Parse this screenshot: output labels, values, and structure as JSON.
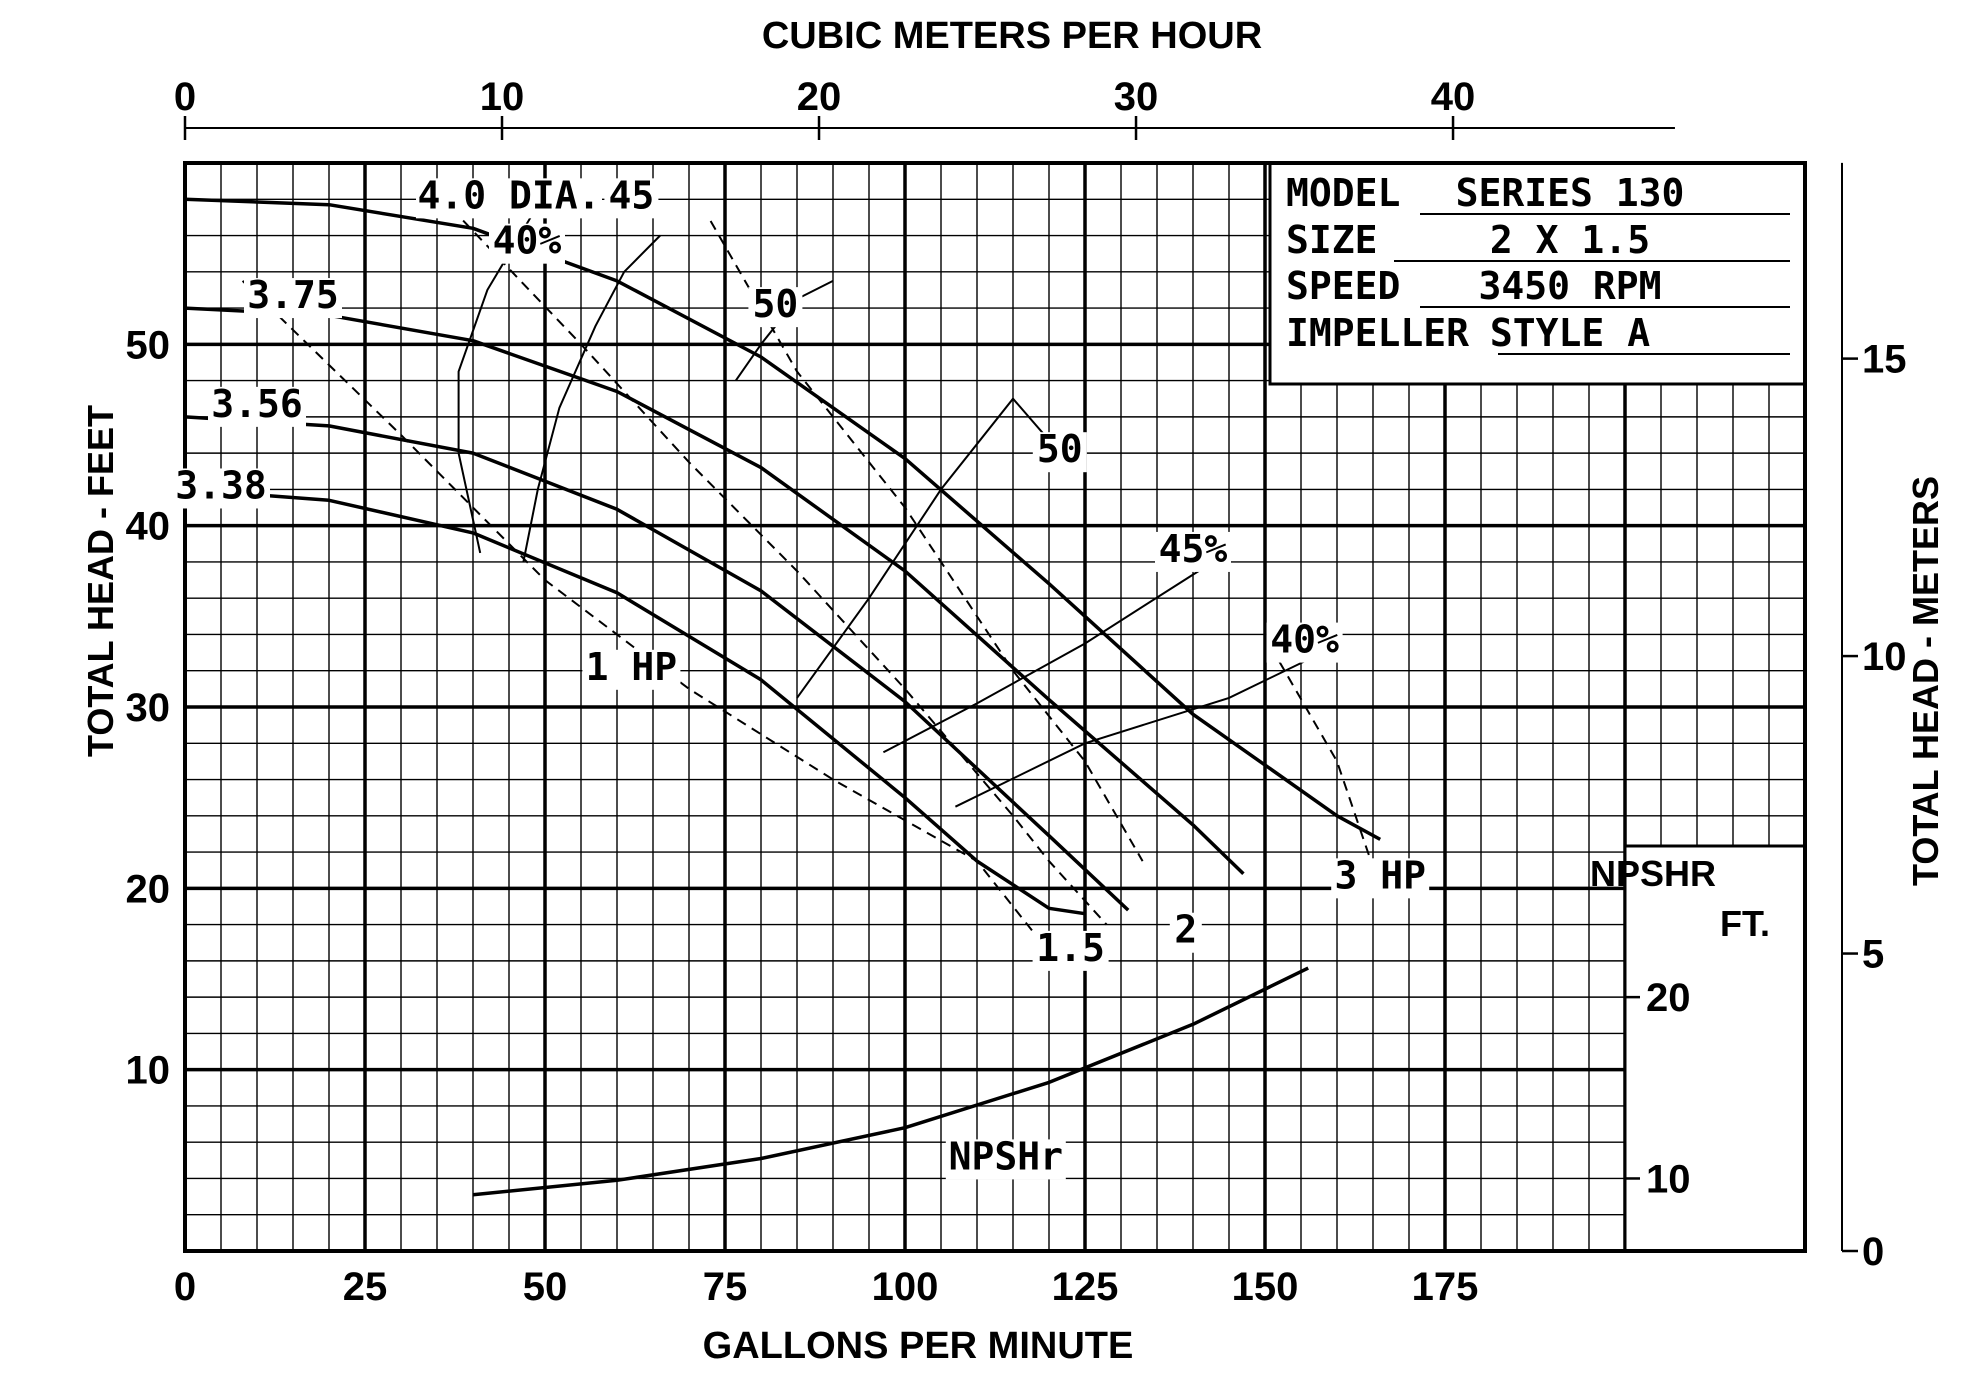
{
  "chart_data": {
    "type": "line",
    "title": "",
    "top_axis": {
      "label": "CUBIC METERS PER HOUR",
      "unit": "m3/h",
      "range": [
        0,
        47
      ],
      "ticks": [
        {
          "value": 0,
          "label": "0"
        },
        {
          "value": 10,
          "label": "10"
        },
        {
          "value": 20,
          "label": "20"
        },
        {
          "value": 30,
          "label": "30"
        },
        {
          "value": 40,
          "label": "40"
        }
      ]
    },
    "x_axis": {
      "label": "GALLONS PER MINUTE",
      "range": [
        0,
        225
      ],
      "ticks": [
        {
          "value": 0,
          "label": "0"
        },
        {
          "value": 25,
          "label": "25"
        },
        {
          "value": 50,
          "label": "50"
        },
        {
          "value": 75,
          "label": "75"
        },
        {
          "value": 100,
          "label": "100"
        },
        {
          "value": 125,
          "label": "125"
        },
        {
          "value": 150,
          "label": "150"
        },
        {
          "value": 175,
          "label": "175"
        }
      ]
    },
    "y_axis": {
      "label": "TOTAL HEAD - FEET",
      "range": [
        0,
        60
      ],
      "ticks": [
        {
          "value": 10,
          "label": "10"
        },
        {
          "value": 20,
          "label": "20"
        },
        {
          "value": 30,
          "label": "30"
        },
        {
          "value": 40,
          "label": "40"
        },
        {
          "value": 50,
          "label": "50"
        }
      ]
    },
    "right_axis": {
      "label": "TOTAL HEAD - METERS",
      "range": [
        0,
        18.29
      ],
      "ticks": [
        {
          "value": 0,
          "label": "0"
        },
        {
          "value": 5,
          "label": "5"
        },
        {
          "value": 10,
          "label": "10"
        },
        {
          "value": 15,
          "label": "15"
        }
      ]
    },
    "npshr_axis": {
      "label_line1": "NPSHR",
      "label_line2": "FT.",
      "ticks": [
        {
          "value": 10,
          "label": "10",
          "head_ft": 4
        },
        {
          "value": 20,
          "label": "20",
          "head_ft": 14
        }
      ]
    },
    "grid": {
      "minor_x_gpm": 5,
      "minor_y_ft": 2,
      "major_x_gpm": 25,
      "major_y_ft": 10
    },
    "info_box": {
      "rows": [
        {
          "key": "MODEL",
          "value": "SERIES 130"
        },
        {
          "key": "SIZE",
          "value": "2 X 1.5"
        },
        {
          "key": "SPEED",
          "value": "3450 RPM"
        },
        {
          "key": "IMPELLER",
          "value": "STYLE A"
        }
      ]
    },
    "series": [
      {
        "name": "4.0 DIA.",
        "kind": "head-capacity",
        "x": [
          0,
          20,
          40,
          60,
          80,
          100,
          120,
          140,
          160,
          166
        ],
        "y": [
          58,
          57.7,
          56.4,
          53.5,
          49.3,
          43.7,
          36.8,
          29.6,
          24,
          22.7
        ]
      },
      {
        "name": "3.75",
        "kind": "head-capacity",
        "x": [
          0,
          20,
          40,
          60,
          80,
          100,
          120,
          140,
          147
        ],
        "y": [
          52,
          51.6,
          50.2,
          47.4,
          43.2,
          37.5,
          30.4,
          23.5,
          20.8
        ]
      },
      {
        "name": "3.56",
        "kind": "head-capacity",
        "x": [
          0,
          20,
          40,
          60,
          80,
          100,
          120,
          131
        ],
        "y": [
          46,
          45.5,
          44,
          40.9,
          36.4,
          30.3,
          22.9,
          18.8
        ]
      },
      {
        "name": "3.38",
        "kind": "head-capacity",
        "x": [
          0,
          20,
          40,
          60,
          80,
          100,
          110,
          120,
          125
        ],
        "y": [
          42,
          41.4,
          39.6,
          36.3,
          31.5,
          25,
          21.5,
          18.9,
          18.6
        ]
      },
      {
        "name": "NPSHr",
        "kind": "npshr",
        "x": [
          40,
          60,
          80,
          100,
          120,
          140,
          156
        ],
        "y": [
          3.1,
          3.9,
          5.1,
          6.8,
          9.3,
          12.5,
          15.6
        ]
      }
    ],
    "efficiency_lines": [
      {
        "label": "40%",
        "x": [
          41,
          38,
          38,
          42,
          48
        ],
        "y": [
          38.5,
          44,
          48.5,
          53,
          57
        ]
      },
      {
        "label": "45",
        "x": [
          47,
          49,
          52,
          57,
          61,
          66
        ],
        "y": [
          38,
          42,
          46.5,
          51,
          54,
          56
        ]
      },
      {
        "label": "50",
        "x": [
          76.5,
          80,
          85,
          90
        ],
        "y": [
          48,
          50,
          52.5,
          53.5
        ]
      },
      {
        "label": "50",
        "x": [
          85,
          95,
          105,
          115,
          122
        ],
        "y": [
          30.5,
          36,
          42,
          47,
          43.8
        ]
      },
      {
        "label": "45%",
        "x": [
          97,
          110,
          125,
          140,
          142
        ],
        "y": [
          27.5,
          30.2,
          33.5,
          37.3,
          37.8
        ]
      },
      {
        "label": "40%",
        "x": [
          107,
          125,
          145,
          158
        ],
        "y": [
          24.5,
          28,
          30.5,
          33
        ]
      }
    ],
    "power_lines": [
      {
        "label": "1 HP",
        "x": [
          8,
          30,
          50,
          70,
          90,
          110,
          118,
          123
        ],
        "y": [
          53.5,
          45,
          37,
          31,
          26,
          21.5,
          17.5,
          16.5
        ]
      },
      {
        "label": "1.5",
        "x": [
          37,
          55,
          70,
          85,
          100,
          115,
          120,
          128
        ],
        "y": [
          57.5,
          50,
          43.5,
          37.5,
          31,
          24,
          21.5,
          18
        ]
      },
      {
        "label": "2",
        "x": [
          73,
          85,
          100,
          115,
          125,
          133
        ],
        "y": [
          56.8,
          48.5,
          41,
          32,
          27,
          21.5
        ]
      },
      {
        "label": "3 HP",
        "x": [
          152,
          160,
          166
        ],
        "y": [
          32.5,
          27,
          20
        ]
      }
    ],
    "annotations": [
      {
        "text": "4.0 DIA.",
        "x": 45,
        "y": 57.5
      },
      {
        "text": "3.75",
        "x": 15,
        "y": 52
      },
      {
        "text": "3.56",
        "x": 10,
        "y": 46
      },
      {
        "text": "3.38",
        "x": 5,
        "y": 41.5
      },
      {
        "text": "40%",
        "x": 47.5,
        "y": 55
      },
      {
        "text": "45",
        "x": 62,
        "y": 57.5
      },
      {
        "text": "50",
        "x": 82,
        "y": 51.5
      },
      {
        "text": "50",
        "x": 121.5,
        "y": 43.5
      },
      {
        "text": "45%",
        "x": 140,
        "y": 38
      },
      {
        "text": "40%",
        "x": 155.5,
        "y": 33
      },
      {
        "text": "1 HP",
        "x": 62,
        "y": 31.5
      },
      {
        "text": "1.5",
        "x": 123,
        "y": 16
      },
      {
        "text": "2",
        "x": 139,
        "y": 17
      },
      {
        "text": "3 HP",
        "x": 166,
        "y": 20
      },
      {
        "text": "NPSHr",
        "x": 114,
        "y": 4.5
      }
    ],
    "legend": "none",
    "colors": {
      "ink": "#000000",
      "background": "#ffffff"
    }
  }
}
